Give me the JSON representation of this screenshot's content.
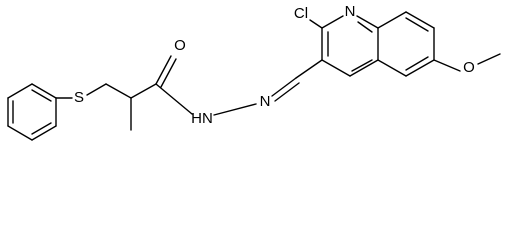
{
  "atoms": [
    {
      "label": "O"
    },
    {
      "label": "Cl"
    },
    {
      "label": "N"
    },
    {
      "label": "O"
    },
    {
      "label": "S"
    },
    {
      "label": "N"
    },
    {
      "label": "HN"
    }
  ]
}
